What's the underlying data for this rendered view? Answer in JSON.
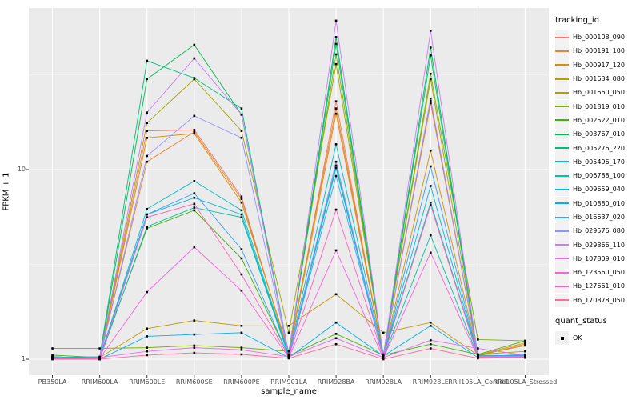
{
  "figure": {
    "xlabel": "sample_name",
    "ylabel": "FPKM + 1",
    "legend_title": "tracking_id",
    "legend2_title": "quant_status",
    "legend2_item": "OK",
    "panel_bg": "#EBEBEB",
    "grid_color": "#FFFFFF",
    "tick_text_color": "#4D4D4D",
    "point_color": "#000000"
  },
  "chart_data": {
    "type": "line",
    "yscale": "log10",
    "ylabel": "FPKM + 1",
    "xlabel": "sample_name",
    "yticks": [
      1,
      10
    ],
    "ytick_labels": [
      "1",
      "10"
    ],
    "yminor": [
      3.1623,
      31.623
    ],
    "ylim": [
      0.9,
      68
    ],
    "legend_position": "right",
    "grid": true,
    "point_shape": "filled-square",
    "categories": [
      "PB350LA",
      "RRIM600LA",
      "RRIM600LE",
      "RRIM600SE",
      "RRIM600PE",
      "RRIM901LA",
      "RRIM928BA",
      "RRIM928LA",
      "RRIM928LE",
      "RRII105LA_Control",
      "RRII105LA_Stressed"
    ],
    "series": [
      {
        "name": "Hb_000108_090",
        "color": "#F8766D",
        "values": [
          1.02,
          1.0,
          16.0,
          16.2,
          7.2,
          1.05,
          22.9,
          1.02,
          23.0,
          1.03,
          1.02
        ]
      },
      {
        "name": "Hb_000191_100",
        "color": "#EA8331",
        "values": [
          1.03,
          1.01,
          11.0,
          15.8,
          7.0,
          1.06,
          19.7,
          1.03,
          22.4,
          1.04,
          1.2
        ]
      },
      {
        "name": "Hb_000917_120",
        "color": "#D89000",
        "values": [
          1.02,
          1.0,
          14.7,
          15.5,
          6.7,
          1.1,
          21.0,
          1.04,
          12.6,
          1.05,
          1.22
        ]
      },
      {
        "name": "Hb_001634_080",
        "color": "#C09B00",
        "values": [
          1.01,
          1.02,
          1.45,
          1.6,
          1.5,
          1.5,
          2.2,
          1.38,
          1.56,
          1.05,
          1.18
        ]
      },
      {
        "name": "Hb_001660_050",
        "color": "#A3A500",
        "values": [
          1.02,
          1.01,
          17.6,
          30.0,
          16.0,
          1.38,
          36.0,
          1.05,
          30.0,
          1.06,
          1.1
        ]
      },
      {
        "name": "Hb_001819_010",
        "color": "#7CAE00",
        "values": [
          1.14,
          1.14,
          1.15,
          1.18,
          1.15,
          1.1,
          40.5,
          1.06,
          32.0,
          1.27,
          1.25
        ]
      },
      {
        "name": "Hb_002522_010",
        "color": "#39B600",
        "values": [
          1.05,
          1.02,
          4.9,
          6.1,
          3.4,
          1.04,
          1.36,
          1.05,
          1.2,
          1.06,
          1.25
        ]
      },
      {
        "name": "Hb_003767_010",
        "color": "#00BB4E",
        "values": [
          1.03,
          1.01,
          30.0,
          45.5,
          19.5,
          1.05,
          50.0,
          1.03,
          44.0,
          1.04,
          1.03
        ]
      },
      {
        "name": "Hb_005276_220",
        "color": "#00BF7D",
        "values": [
          1.02,
          1.03,
          37.5,
          30.4,
          21.0,
          1.06,
          46.0,
          1.04,
          40.0,
          1.05,
          1.04
        ]
      },
      {
        "name": "Hb_005496_170",
        "color": "#00C1A3",
        "values": [
          1.01,
          1.0,
          5.0,
          6.3,
          5.6,
          1.03,
          10.2,
          1.02,
          4.5,
          1.03,
          1.02
        ]
      },
      {
        "name": "Hb_006788_100",
        "color": "#00BFC4",
        "values": [
          1.02,
          1.01,
          6.2,
          8.7,
          6.1,
          1.05,
          13.6,
          1.03,
          6.7,
          1.04,
          1.05
        ]
      },
      {
        "name": "Hb_009659_040",
        "color": "#00BAE0",
        "values": [
          1.01,
          1.02,
          5.8,
          7.1,
          5.8,
          1.04,
          10.5,
          1.02,
          8.2,
          1.03,
          1.04
        ]
      },
      {
        "name": "Hb_010880_010",
        "color": "#00B0F6",
        "values": [
          1.03,
          1.0,
          1.32,
          1.35,
          1.38,
          1.02,
          1.56,
          1.04,
          1.5,
          1.02,
          1.05
        ]
      },
      {
        "name": "Hb_016637_020",
        "color": "#35A2FF",
        "values": [
          1.02,
          1.01,
          5.8,
          7.5,
          3.8,
          1.03,
          9.25,
          1.02,
          10.4,
          1.03,
          1.06
        ]
      },
      {
        "name": "Hb_029576_080",
        "color": "#9590FF",
        "values": [
          1.01,
          1.0,
          11.8,
          19.2,
          14.7,
          1.04,
          11.0,
          1.02,
          23.7,
          1.03,
          1.04
        ]
      },
      {
        "name": "Hb_029866_110",
        "color": "#C77CFF",
        "values": [
          1.02,
          1.01,
          20.0,
          38.6,
          19.5,
          1.05,
          61.0,
          1.03,
          54.0,
          1.04,
          1.03
        ]
      },
      {
        "name": "Hb_107809_010",
        "color": "#E76BF3",
        "values": [
          1.01,
          1.02,
          1.1,
          1.15,
          1.12,
          1.03,
          1.29,
          1.02,
          1.26,
          1.14,
          1.05
        ]
      },
      {
        "name": "Hb_123560_050",
        "color": "#FA62DB",
        "values": [
          1.0,
          1.01,
          2.26,
          3.9,
          2.3,
          1.02,
          3.75,
          1.01,
          3.65,
          1.02,
          1.03
        ]
      },
      {
        "name": "Hb_127661_010",
        "color": "#FF62BC",
        "values": [
          1.01,
          1.0,
          5.6,
          6.6,
          2.8,
          1.03,
          6.15,
          1.02,
          6.5,
          1.03,
          1.02
        ]
      },
      {
        "name": "Hb_170878_050",
        "color": "#FF6A98",
        "values": [
          1.0,
          1.0,
          1.05,
          1.08,
          1.06,
          1.01,
          1.2,
          1.0,
          1.14,
          1.01,
          1.02
        ]
      }
    ]
  }
}
